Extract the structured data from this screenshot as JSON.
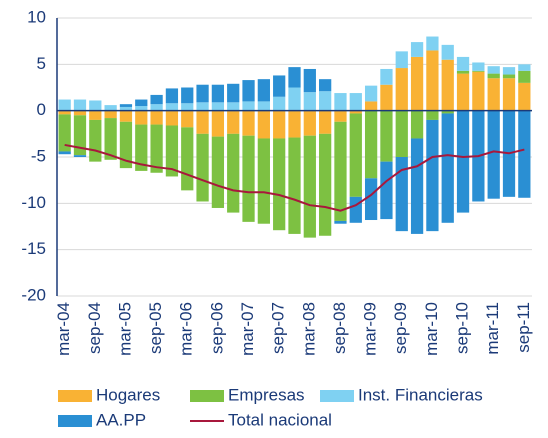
{
  "chart_data": {
    "type": "bar",
    "stacked": true,
    "categories": [
      "mar-04",
      null,
      "sep-04",
      null,
      "mar-05",
      null,
      "sep-05",
      null,
      "mar-06",
      null,
      "sep-06",
      null,
      "mar-07",
      null,
      "sep-07",
      null,
      "mar-08",
      null,
      "sep-08",
      null,
      "mar-09",
      null,
      "sep-09",
      null,
      "mar-10",
      null,
      "sep-10",
      null,
      "mar-11",
      null,
      "sep-11"
    ],
    "series": [
      {
        "name": "Hogares",
        "color": "#f9b234",
        "values": [
          -0.4,
          -0.5,
          -1.0,
          -0.8,
          -1.2,
          -1.5,
          -1.5,
          -1.6,
          -1.8,
          -2.5,
          -2.8,
          -2.5,
          -2.7,
          -3.0,
          -3.0,
          -2.9,
          -2.7,
          -2.5,
          -1.2,
          -0.3,
          1.0,
          2.8,
          4.6,
          5.8,
          6.5,
          5.5,
          4.0,
          4.2,
          3.5,
          3.5,
          3.0
        ]
      },
      {
        "name": "Empresas",
        "color": "#7dc142",
        "values": [
          -4.0,
          -4.3,
          -4.5,
          -4.5,
          -5.0,
          -5.0,
          -5.2,
          -5.5,
          -6.8,
          -7.3,
          -7.7,
          -8.5,
          -9.3,
          -9.2,
          -9.9,
          -10.4,
          -11.0,
          -11.0,
          -10.7,
          -9.0,
          -7.3,
          -5.5,
          -5.0,
          -3.0,
          -1.0,
          -0.3,
          0.3,
          0.1,
          0.5,
          0.4,
          1.3
        ]
      },
      {
        "name": "Inst. Financieras",
        "color": "#7fd1f2",
        "values": [
          1.2,
          1.2,
          1.1,
          0.6,
          0.4,
          0.5,
          0.7,
          0.8,
          0.8,
          0.9,
          0.9,
          0.9,
          1.0,
          1.0,
          1.5,
          2.5,
          2.0,
          2.1,
          1.9,
          1.9,
          1.7,
          1.7,
          1.8,
          1.6,
          1.5,
          1.6,
          1.5,
          0.9,
          0.8,
          0.8,
          0.7
        ]
      },
      {
        "name": "AA.PP",
        "color": "#2a8fd3",
        "values": [
          -0.3,
          -0.2,
          0,
          0,
          0.3,
          0.7,
          1.0,
          1.6,
          1.7,
          1.9,
          1.9,
          2.0,
          2.3,
          2.4,
          2.3,
          2.2,
          2.5,
          1.3,
          -0.3,
          -2.8,
          -4.5,
          -6.2,
          -8.0,
          -10.3,
          -12.0,
          -11.8,
          -11.0,
          -9.8,
          -9.5,
          -9.3,
          -9.4
        ]
      },
      {
        "name": "Total nacional",
        "type": "line",
        "color": "#a8183c",
        "values": [
          -3.7,
          -4.0,
          -4.3,
          -4.8,
          -5.4,
          -5.8,
          -6.1,
          -6.3,
          -6.9,
          -7.5,
          -8.1,
          -8.6,
          -8.8,
          -8.8,
          -9.1,
          -9.6,
          -10.2,
          -10.4,
          -10.8,
          -10.2,
          -9.1,
          -7.6,
          -6.4,
          -6.0,
          -5.0,
          -4.8,
          -5.0,
          -4.9,
          -4.4,
          -4.6,
          -4.2
        ]
      }
    ],
    "ylim": [
      -20,
      10
    ],
    "yticks": [
      -20,
      -15,
      -10,
      -5,
      0,
      5,
      10
    ],
    "grid": true,
    "legend": "bottom"
  }
}
